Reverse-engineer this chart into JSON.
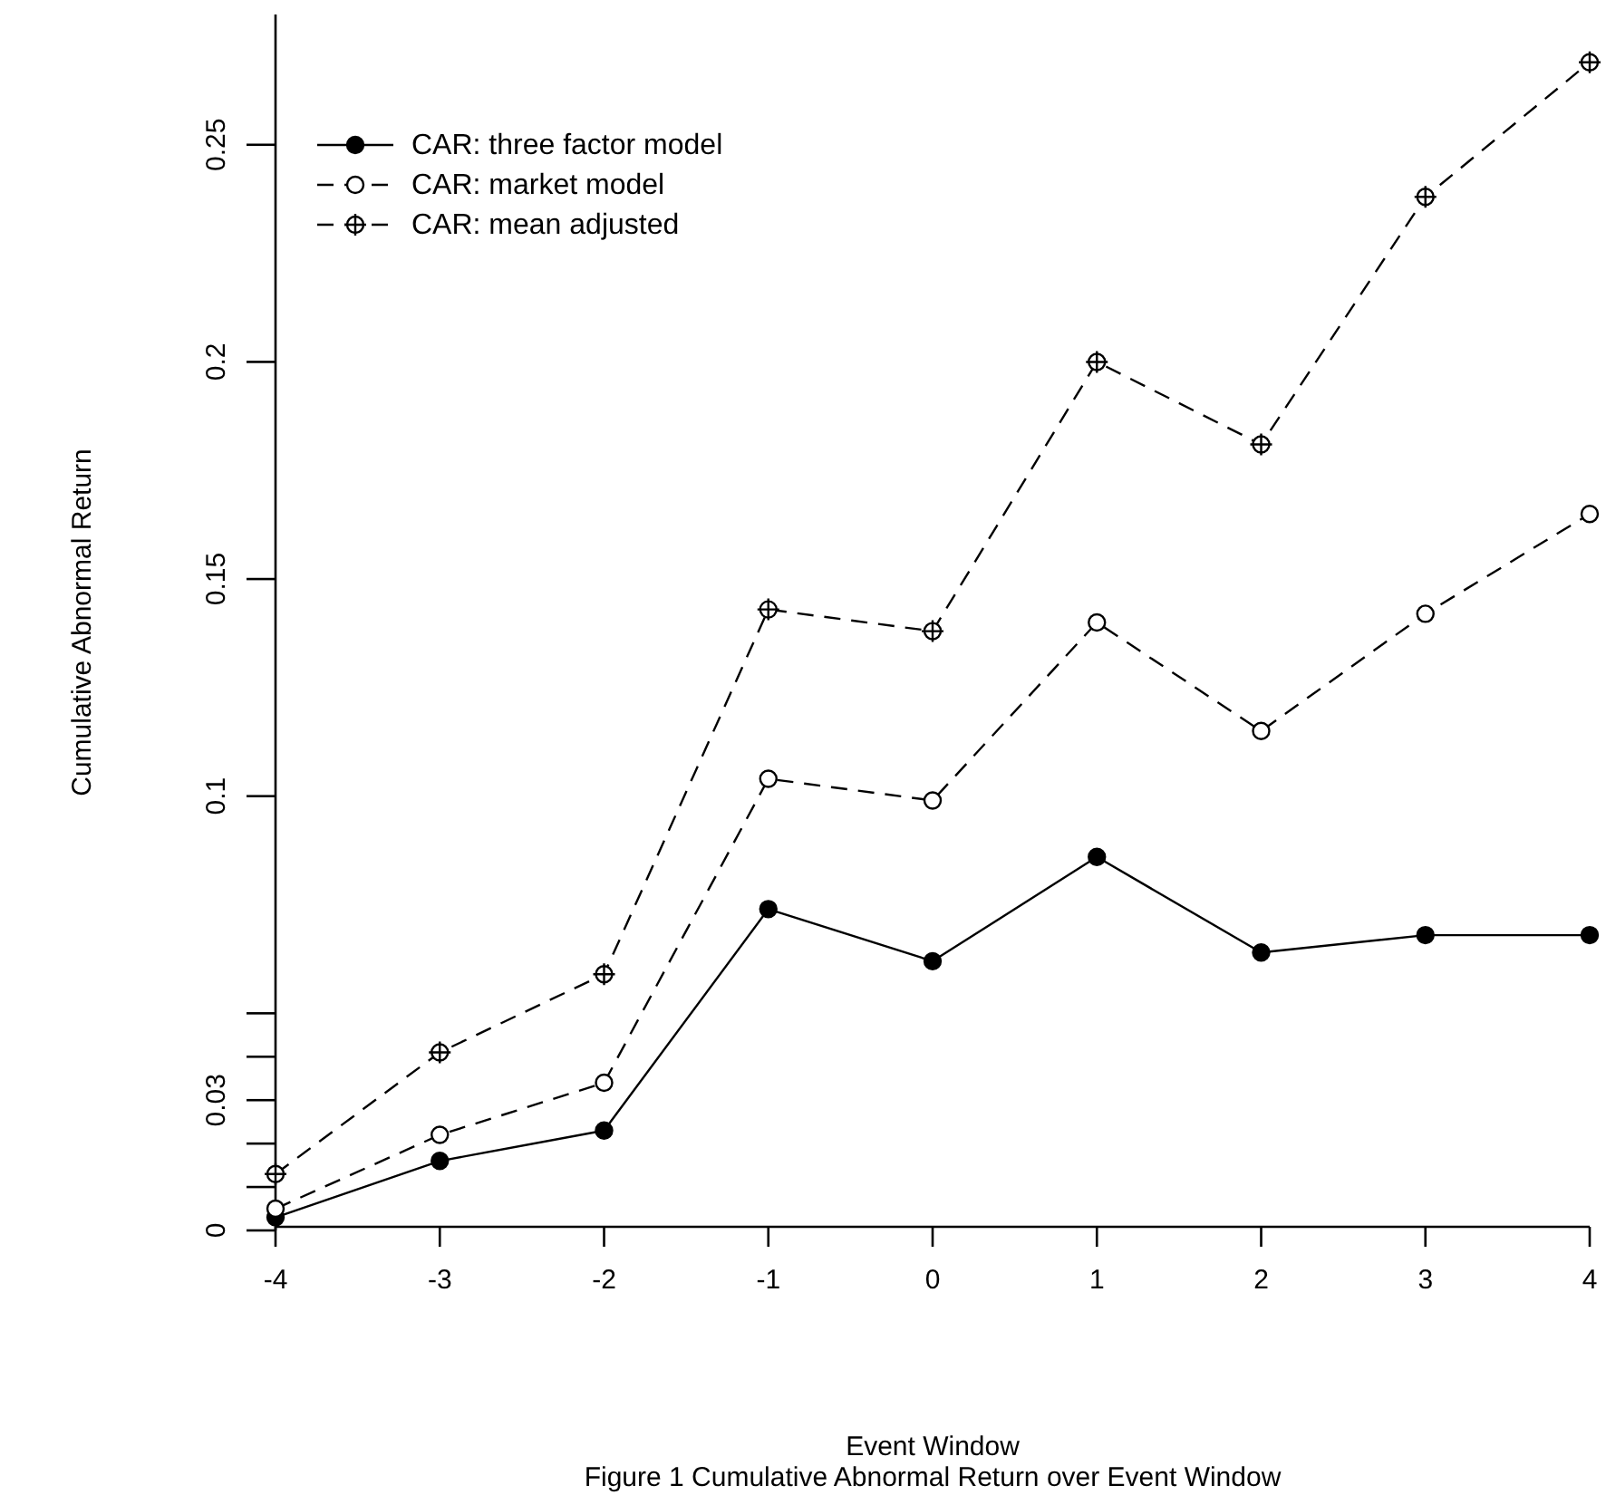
{
  "chart_data": {
    "type": "line",
    "xlabel": "Event Window",
    "ylabel": "Cumulative Abnormal Return",
    "annotations": [
      "Figure 1 Cumulative Abnormal Return over Event Window"
    ],
    "x": [
      -4,
      -3,
      -2,
      -1,
      0,
      1,
      2,
      3,
      4
    ],
    "xlim": [
      -4,
      4
    ],
    "xticks": [
      -4,
      -3,
      -2,
      -1,
      0,
      1,
      2,
      3,
      4
    ],
    "ylim": [
      0,
      0.28
    ],
    "yticks": [
      0,
      {
        "value": 0.01,
        "label": null
      },
      {
        "value": 0.02,
        "label": null
      },
      0.03,
      {
        "value": 0.04,
        "label": null
      },
      {
        "value": 0.05,
        "label": null
      },
      0.1,
      0.15,
      0.2,
      0.25
    ],
    "grid": false,
    "legend": "top left",
    "series": [
      {
        "name": "CAR: three factor model",
        "color": "#000000",
        "line_style": "solid",
        "marker": "circle",
        "values": [
          0.003,
          0.016,
          0.023,
          0.074,
          0.062,
          0.086,
          0.064,
          0.068,
          0.068
        ]
      },
      {
        "name": "CAR: market model",
        "color": "#000000",
        "line_style": "dashed",
        "marker": "circle",
        "values": [
          0.005,
          0.022,
          0.034,
          0.104,
          0.099,
          0.14,
          0.115,
          0.142,
          0.165
        ]
      },
      {
        "name": "CAR: mean adjusted",
        "color": "#000000",
        "line_style": "dashed",
        "marker": "circle",
        "values": [
          0.013,
          0.041,
          0.059,
          0.143,
          0.138,
          0.2,
          0.181,
          0.238,
          0.269
        ]
      }
    ]
  }
}
